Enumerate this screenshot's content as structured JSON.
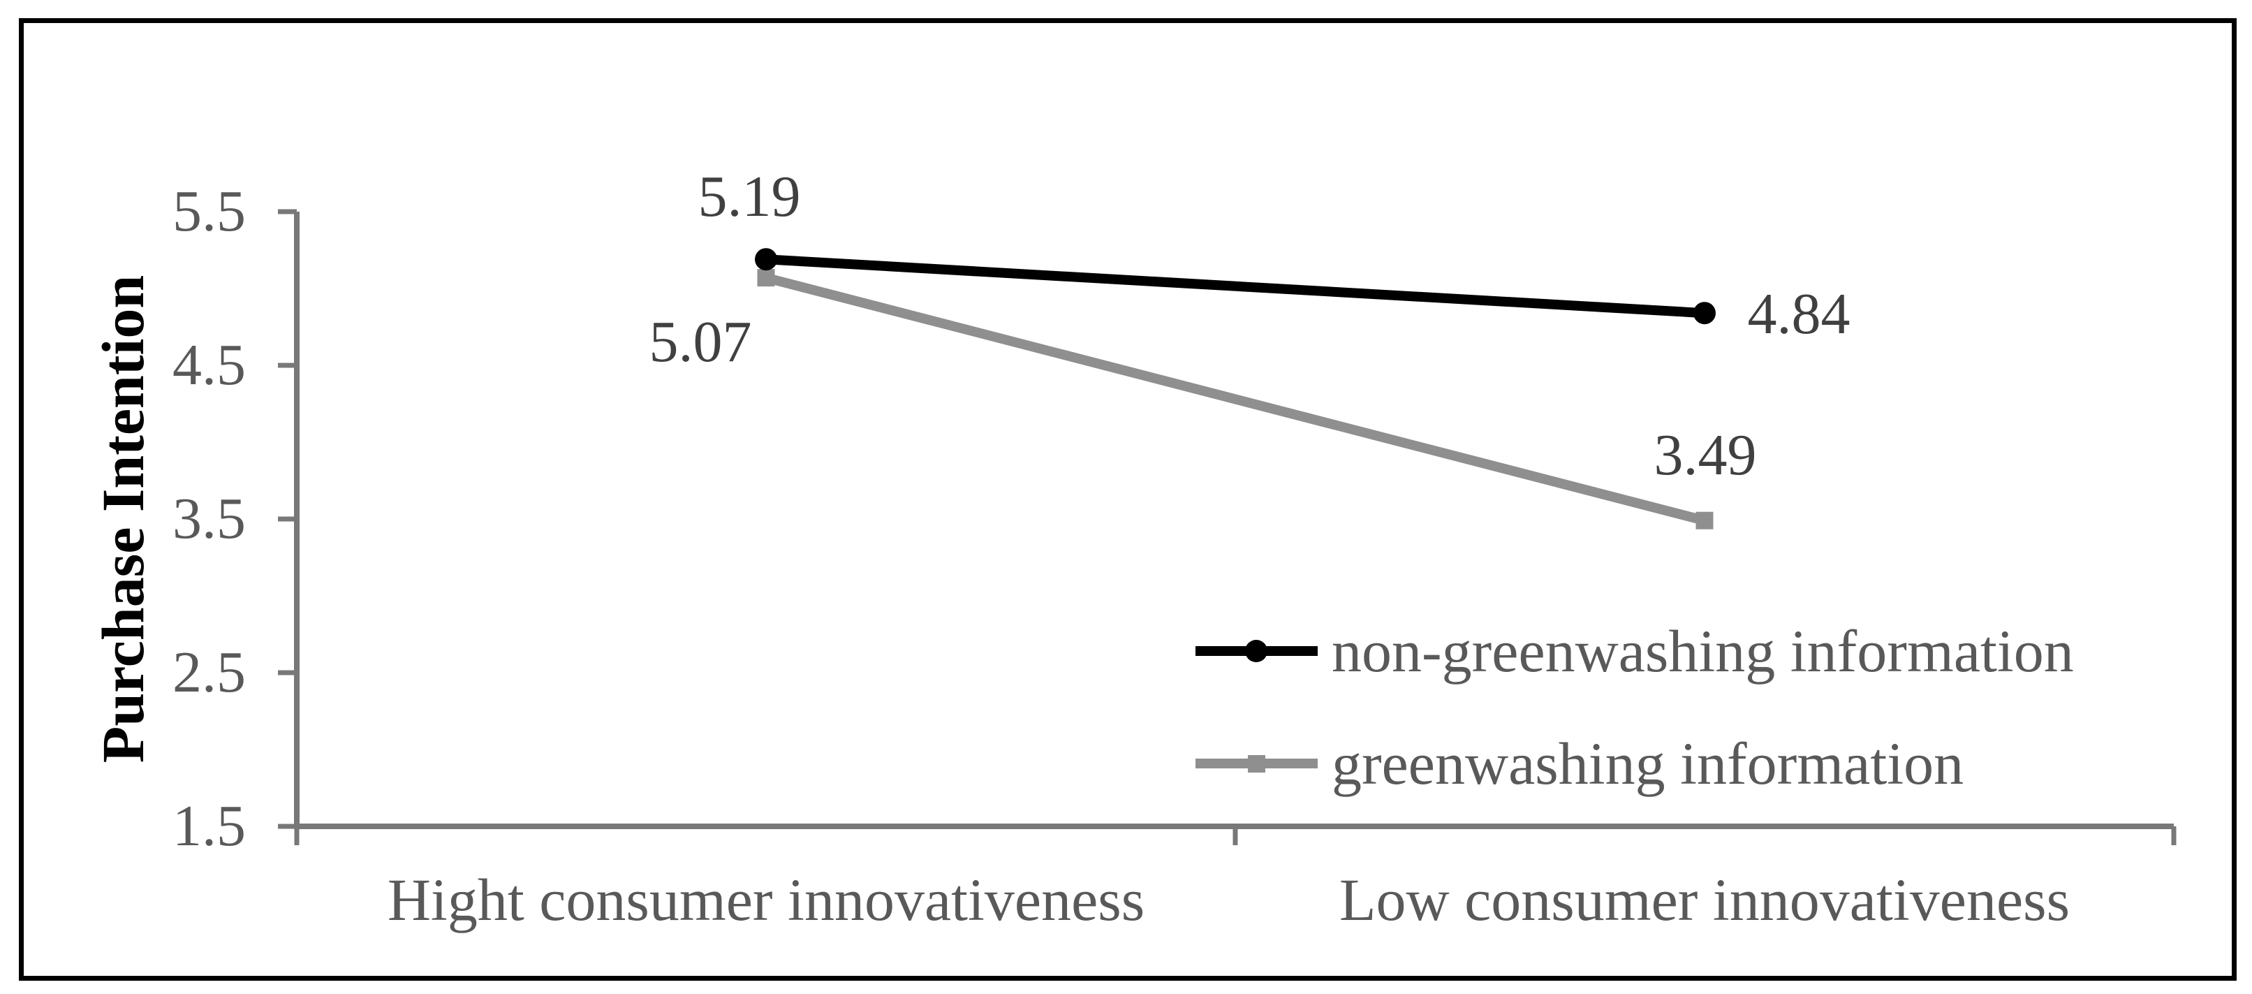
{
  "figure": {
    "background": "#ffffff",
    "border_color": "#000000"
  },
  "chart_data": {
    "type": "line",
    "title": "",
    "xlabel": "",
    "ylabel": "Purchase Intention",
    "categories": [
      "Hight consumer innovativeness",
      "Low consumer innovativeness"
    ],
    "series": [
      {
        "name": "non-greenwashing information",
        "values": [
          5.19,
          4.84
        ],
        "labels": [
          "5.19",
          "4.84"
        ],
        "color": "#000000",
        "marker": "circle"
      },
      {
        "name": "greenwashing information",
        "values": [
          5.07,
          3.49
        ],
        "labels": [
          "5.07",
          "3.49"
        ],
        "color": "#8f8f8f",
        "marker": "square"
      }
    ],
    "ylim": [
      1.5,
      5.5
    ],
    "yticks": [
      "5.5",
      "4.5",
      "3.5",
      "2.5",
      "1.5"
    ],
    "grid": false,
    "legend_position": "inside-right",
    "axis_color": "#787878",
    "tick_label_color": "#595959",
    "data_label_color": "#404040"
  }
}
